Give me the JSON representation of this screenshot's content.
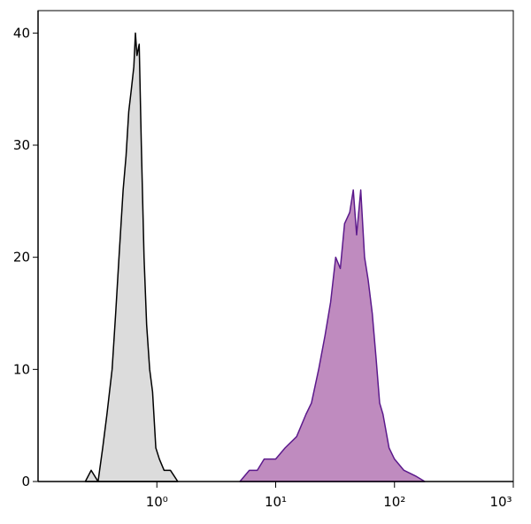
{
  "chart_data": {
    "type": "area",
    "xscale": "log",
    "xlim": [
      0.1,
      1000
    ],
    "xticks": [
      {
        "value": 1,
        "label": "10⁰"
      },
      {
        "value": 10,
        "label": "10¹"
      },
      {
        "value": 100,
        "label": "10²"
      },
      {
        "value": 1000,
        "label": "10³"
      }
    ],
    "ylim": [
      0,
      42
    ],
    "yticks": [
      0,
      10,
      20,
      30,
      40
    ],
    "series": [
      {
        "color": "#000000",
        "fill": "#dcdcdc",
        "x": [
          0.25,
          0.28,
          0.32,
          0.35,
          0.38,
          0.42,
          0.45,
          0.48,
          0.52,
          0.55,
          0.58,
          0.61,
          0.64,
          0.66,
          0.68,
          0.71,
          0.74,
          0.78,
          0.82,
          0.87,
          0.92,
          0.98,
          1.05,
          1.15,
          1.3,
          1.5
        ],
        "values": [
          0,
          1,
          0,
          3,
          6,
          10,
          15,
          20,
          26,
          29,
          33,
          35,
          37,
          40,
          38,
          39,
          30,
          20,
          14,
          10,
          8,
          3,
          2,
          1,
          1,
          0
        ]
      },
      {
        "color": "#5c1a8c",
        "fill": "#bf8bbf",
        "x": [
          5,
          6,
          7,
          8,
          10,
          12,
          15,
          18,
          20,
          23,
          26,
          29,
          32,
          35,
          38,
          42,
          45,
          48,
          52,
          56,
          60,
          65,
          70,
          75,
          80,
          90,
          100,
          120,
          150,
          180
        ],
        "values": [
          0,
          1,
          1,
          2,
          2,
          3,
          4,
          6,
          7,
          10,
          13,
          16,
          20,
          19,
          23,
          24,
          26,
          22,
          26,
          20,
          18,
          15,
          11,
          7,
          6,
          3,
          2,
          1,
          0.5,
          0
        ]
      }
    ]
  }
}
